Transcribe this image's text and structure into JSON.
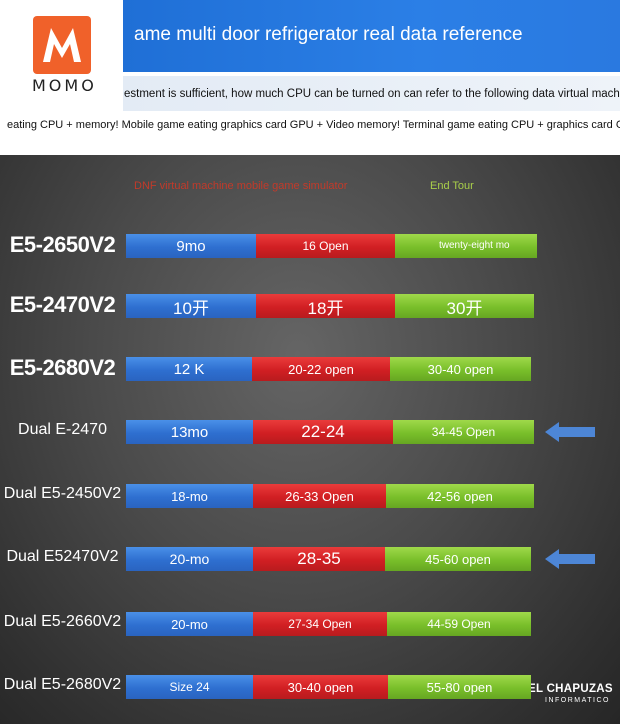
{
  "brand": {
    "name": "MOMO",
    "logo_letter": "M",
    "logo_color": "#f0612a"
  },
  "header": {
    "banner_title": "ame multi door refrigerator real data reference",
    "strip_text": "estment is sufficient, how much CPU can be turned on can refer to the following data virtual machine",
    "line3": "eating CPU + memory! Mobile game eating graphics card GPU + Video memory! Terminal game eating CPU + graphics card GPU"
  },
  "chart_data": {
    "type": "bar",
    "layout": "horizontal stacked",
    "legend": [
      {
        "label": "DNF virtual machine mobile game simulator",
        "color": "#c23a2a"
      },
      {
        "label": "End Tour",
        "color": "#a9cf4a"
      }
    ],
    "series_colors": [
      "#2e6fd0",
      "#d11f23",
      "#79bf2a"
    ],
    "rows": [
      {
        "label": "E5-2650V2",
        "style": "bold",
        "segments": [
          "9mo",
          "16 Open",
          "twenty-eight mo"
        ]
      },
      {
        "label": "E5-2470V2",
        "style": "bold",
        "segments": [
          "10开",
          "18开",
          "30开"
        ]
      },
      {
        "label": "E5-2680V2",
        "style": "bold",
        "segments": [
          "12 K",
          "20-22 open",
          "30-40 open"
        ]
      },
      {
        "label": "Dual E-2470",
        "style": "plain",
        "segments": [
          "13mo",
          "22-24",
          "34-45 Open"
        ]
      },
      {
        "label": "Dual E5-2450V2",
        "style": "plain",
        "segments": [
          "18-mo",
          "26-33 Open",
          "42-56 open"
        ]
      },
      {
        "label": "Dual E52470V2",
        "style": "plain",
        "segments": [
          "20-mo",
          "28-35",
          "45-60 open"
        ]
      },
      {
        "label": "Dual E5-2660V2",
        "style": "plain",
        "segments": [
          "20-mo",
          "27-34 Open",
          "44-59 Open"
        ]
      },
      {
        "label": "Dual E5-2680V2",
        "style": "plain",
        "segments": [
          "Size 24",
          "30-40 open",
          "55-80 open"
        ]
      }
    ],
    "highlighted_rows": [
      "Dual E-2470",
      "Dual E52470V2"
    ]
  },
  "watermark": {
    "line1": "EL CHAPUZAS",
    "line2": "INFORMATICO"
  }
}
